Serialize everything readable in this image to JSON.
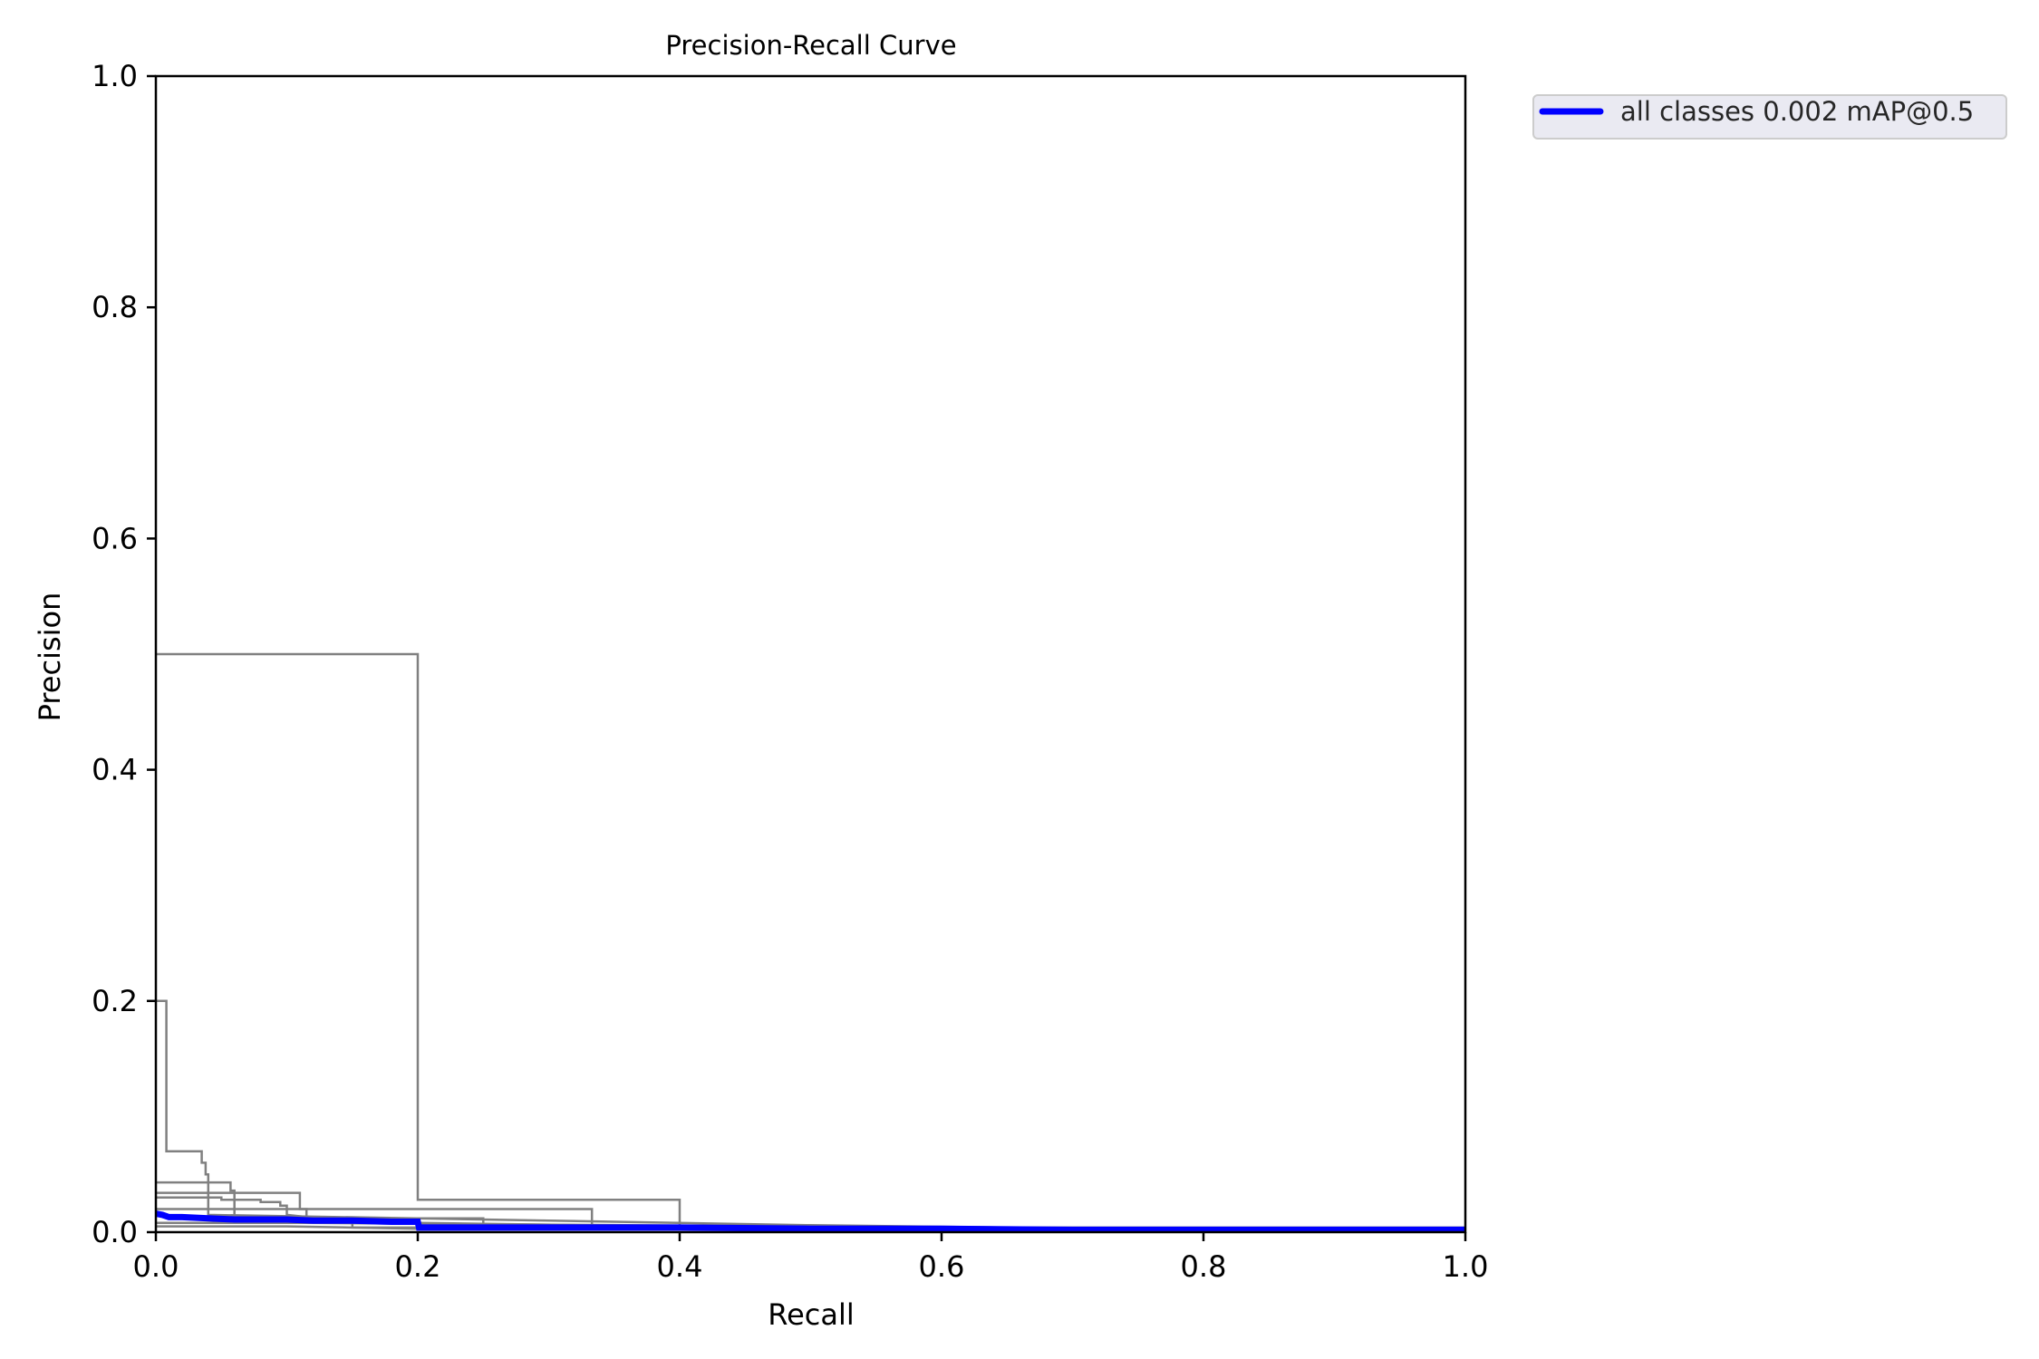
{
  "chart_data": {
    "type": "line",
    "title": "Precision-Recall Curve",
    "xlabel": "Recall",
    "ylabel": "Precision",
    "xlim": [
      0.0,
      1.0
    ],
    "ylim": [
      0.0,
      1.0
    ],
    "xticks": [
      "0.0",
      "0.2",
      "0.4",
      "0.6",
      "0.8",
      "1.0"
    ],
    "yticks": [
      "0.0",
      "0.2",
      "0.4",
      "0.6",
      "0.8",
      "1.0"
    ],
    "grid": false,
    "legend_position": "outside-top-right",
    "colors": {
      "class_curves": "#808080",
      "all_classes": "#0000ff",
      "legend_face": "#eaeaf2"
    },
    "series": [
      {
        "x": [
          0.0,
          0.2,
          0.2,
          0.4,
          0.4,
          1.0
        ],
        "y": [
          0.5,
          0.5,
          0.028,
          0.028,
          0.004,
          0.004
        ]
      },
      {
        "x": [
          0.0,
          0.008,
          0.008,
          0.035,
          0.035,
          0.038,
          0.038,
          0.04,
          0.04,
          0.3,
          0.5,
          0.8,
          1.0
        ],
        "y": [
          0.2,
          0.2,
          0.07,
          0.07,
          0.06,
          0.06,
          0.05,
          0.05,
          0.015,
          0.01,
          0.006,
          0.002,
          0.001
        ]
      },
      {
        "x": [
          0.0,
          0.057,
          0.057,
          0.06,
          0.06,
          0.333,
          0.333,
          1.0
        ],
        "y": [
          0.043,
          0.043,
          0.036,
          0.036,
          0.02,
          0.02,
          0.003,
          0.003
        ]
      },
      {
        "x": [
          0.0,
          0.04,
          0.04,
          0.11,
          0.11,
          0.115,
          0.115,
          1.0
        ],
        "y": [
          0.034,
          0.034,
          0.034,
          0.034,
          0.02,
          0.02,
          0.008,
          0.001
        ]
      },
      {
        "x": [
          0.0,
          0.03,
          0.05,
          0.05,
          0.08,
          0.08,
          0.095,
          0.095,
          0.1,
          0.1,
          0.14,
          0.2,
          0.4,
          1.0
        ],
        "y": [
          0.03,
          0.03,
          0.03,
          0.028,
          0.028,
          0.026,
          0.026,
          0.023,
          0.023,
          0.015,
          0.01,
          0.008,
          0.005,
          0.001
        ]
      },
      {
        "x": [
          0.0,
          0.06,
          0.06,
          0.25,
          0.25,
          1.0
        ],
        "y": [
          0.02,
          0.02,
          0.012,
          0.012,
          0.006,
          0.002
        ]
      },
      {
        "x": [
          0.0,
          0.1,
          0.2,
          1.0
        ],
        "y": [
          0.005,
          0.005,
          0.003,
          0.001
        ]
      },
      {
        "x": [
          0.0,
          0.15,
          0.15,
          0.5,
          0.5,
          1.0
        ],
        "y": [
          0.008,
          0.008,
          0.004,
          0.004,
          0.002,
          0.001
        ]
      },
      {
        "name": "all classes 0.002 mAP@0.5",
        "x": [
          0.0,
          0.005,
          0.01,
          0.02,
          0.04,
          0.06,
          0.08,
          0.1,
          0.12,
          0.15,
          0.18,
          0.2,
          0.201,
          0.3,
          0.4,
          0.5,
          0.6,
          0.7,
          0.8,
          0.9,
          1.0
        ],
        "y": [
          0.016,
          0.015,
          0.013,
          0.013,
          0.012,
          0.011,
          0.011,
          0.011,
          0.01,
          0.01,
          0.009,
          0.009,
          0.004,
          0.004,
          0.004,
          0.003,
          0.003,
          0.002,
          0.002,
          0.002,
          0.002
        ]
      }
    ]
  }
}
